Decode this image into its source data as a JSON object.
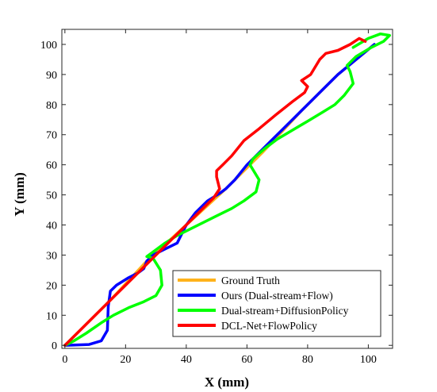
{
  "chart_data": {
    "type": "line",
    "title": "",
    "xlabel": "X (mm)",
    "ylabel": "Y (mm)",
    "xlim": [
      -1,
      108
    ],
    "ylim": [
      -1,
      105
    ],
    "xticks": [
      0,
      20,
      40,
      60,
      80,
      100
    ],
    "yticks": [
      0,
      10,
      20,
      30,
      40,
      50,
      60,
      70,
      80,
      90,
      100
    ],
    "grid": false,
    "legend_position": "bottom-right",
    "series": [
      {
        "name": "Ground Truth",
        "color": "#ffb21a",
        "points": [
          [
            0,
            0
          ],
          [
            15,
            15
          ],
          [
            27,
            28
          ],
          [
            40,
            40
          ],
          [
            53,
            52
          ],
          [
            65,
            64
          ],
          [
            78,
            78
          ],
          [
            90,
            90
          ],
          [
            102,
            100
          ]
        ]
      },
      {
        "name": "Ours (Dual-stream+Flow)",
        "color": "#0000ff",
        "points": [
          [
            0,
            0
          ],
          [
            8,
            0.3
          ],
          [
            12,
            1.5
          ],
          [
            14,
            5
          ],
          [
            14.3,
            13
          ],
          [
            15,
            18
          ],
          [
            17,
            20
          ],
          [
            21,
            22.5
          ],
          [
            24,
            24
          ],
          [
            26,
            25.5
          ],
          [
            27,
            28
          ],
          [
            29,
            30
          ],
          [
            33,
            32
          ],
          [
            37,
            34
          ],
          [
            38.5,
            37
          ],
          [
            40,
            40
          ],
          [
            43,
            44
          ],
          [
            47,
            48
          ],
          [
            51,
            50.5
          ],
          [
            53,
            52
          ],
          [
            56,
            55
          ],
          [
            60,
            60
          ],
          [
            64,
            64
          ],
          [
            68,
            68
          ],
          [
            73,
            73
          ],
          [
            78,
            78
          ],
          [
            85,
            85
          ],
          [
            90,
            90
          ],
          [
            96,
            95
          ],
          [
            102,
            100
          ]
        ]
      },
      {
        "name": "Dual-stream+DiffusionPolicy",
        "color": "#00ff00",
        "points": [
          [
            0,
            0
          ],
          [
            3,
            1.5
          ],
          [
            7,
            4
          ],
          [
            12,
            7.5
          ],
          [
            16,
            10
          ],
          [
            21,
            12.5
          ],
          [
            26,
            14.5
          ],
          [
            30,
            16.5
          ],
          [
            32,
            20
          ],
          [
            31.5,
            25
          ],
          [
            29,
            29
          ],
          [
            27,
            29.5
          ],
          [
            29,
            31
          ],
          [
            33,
            34
          ],
          [
            37,
            36.5
          ],
          [
            41,
            38.5
          ],
          [
            45,
            40.5
          ],
          [
            50,
            43
          ],
          [
            55,
            45.5
          ],
          [
            59,
            48
          ],
          [
            63,
            51
          ],
          [
            64,
            55
          ],
          [
            61,
            60
          ],
          [
            62,
            62
          ],
          [
            66,
            65.5
          ],
          [
            70,
            68.5
          ],
          [
            75,
            71.5
          ],
          [
            80,
            74.5
          ],
          [
            85,
            77.5
          ],
          [
            89,
            80
          ],
          [
            92,
            83
          ],
          [
            95,
            87
          ],
          [
            94,
            91
          ],
          [
            93,
            93
          ],
          [
            96,
            96
          ],
          [
            101,
            99
          ],
          [
            105,
            101
          ],
          [
            107,
            103
          ],
          [
            104,
            103.5
          ],
          [
            100,
            102
          ],
          [
            95,
            99
          ]
        ]
      },
      {
        "name": "DCL-Net+FlowPolicy",
        "color": "#ff0000",
        "points": [
          [
            0,
            0
          ],
          [
            5,
            5
          ],
          [
            10,
            10
          ],
          [
            15,
            15
          ],
          [
            20,
            20
          ],
          [
            25,
            25
          ],
          [
            30,
            30
          ],
          [
            35,
            35
          ],
          [
            40,
            40
          ],
          [
            45,
            45
          ],
          [
            49,
            49
          ],
          [
            51,
            52
          ],
          [
            50,
            56
          ],
          [
            50,
            58
          ],
          [
            52,
            60
          ],
          [
            55,
            63
          ],
          [
            59,
            68
          ],
          [
            64,
            72
          ],
          [
            70,
            77
          ],
          [
            75,
            81
          ],
          [
            79,
            84
          ],
          [
            80,
            86
          ],
          [
            78,
            88
          ],
          [
            81,
            90
          ],
          [
            84,
            95
          ],
          [
            86,
            97
          ],
          [
            90,
            98
          ],
          [
            94,
            100
          ],
          [
            97,
            102
          ],
          [
            99,
            101
          ]
        ]
      }
    ]
  }
}
